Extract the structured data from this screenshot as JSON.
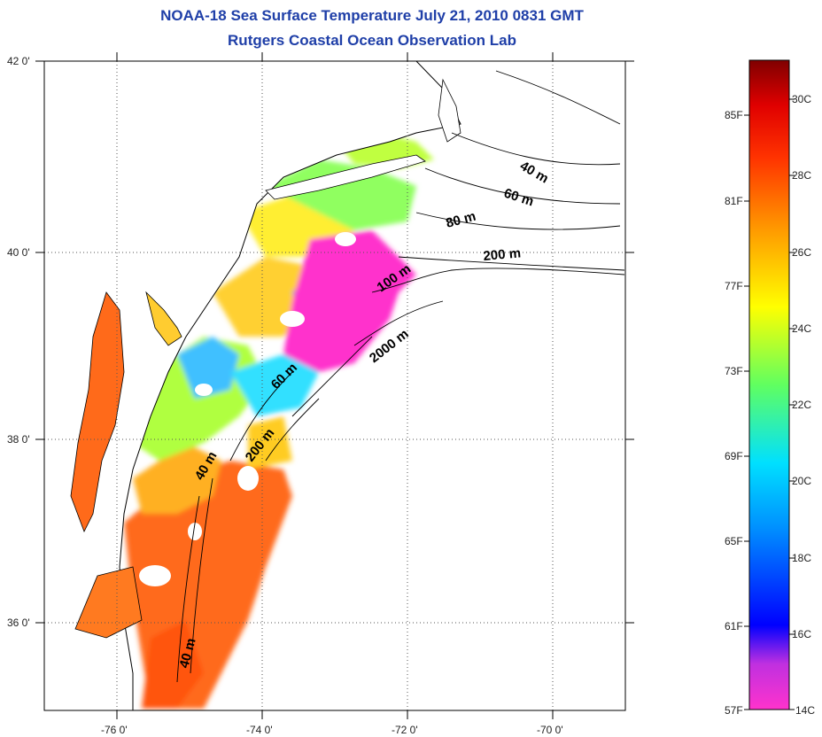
{
  "title": {
    "line1": "NOAA-18 Sea Surface Temperature July 21, 2010 0831 GMT",
    "line2": "Rutgers Coastal Ocean Observation Lab"
  },
  "axes": {
    "lat_ticks": [
      "42 0'",
      "40 0'",
      "38 0'",
      "36 0'"
    ],
    "lon_ticks": [
      "-76 0'",
      "-74 0'",
      "-72 0'",
      "-70 0'"
    ]
  },
  "contour_labels": [
    "40 m",
    "60 m",
    "80 m",
    "200 m",
    "100 m",
    "2000 m",
    "60 m",
    "200 m",
    "40 m",
    "40 m"
  ],
  "colorbar": {
    "fahrenheit": [
      "85F",
      "81F",
      "77F",
      "73F",
      "69F",
      "65F",
      "61F",
      "57F"
    ],
    "celsius": [
      "30C",
      "28C",
      "26C",
      "24C",
      "22C",
      "20C",
      "18C",
      "16C",
      "14C"
    ]
  },
  "colors": {
    "title": "#1f3fa8",
    "land_outline": "#000000",
    "grid": "#555555"
  }
}
